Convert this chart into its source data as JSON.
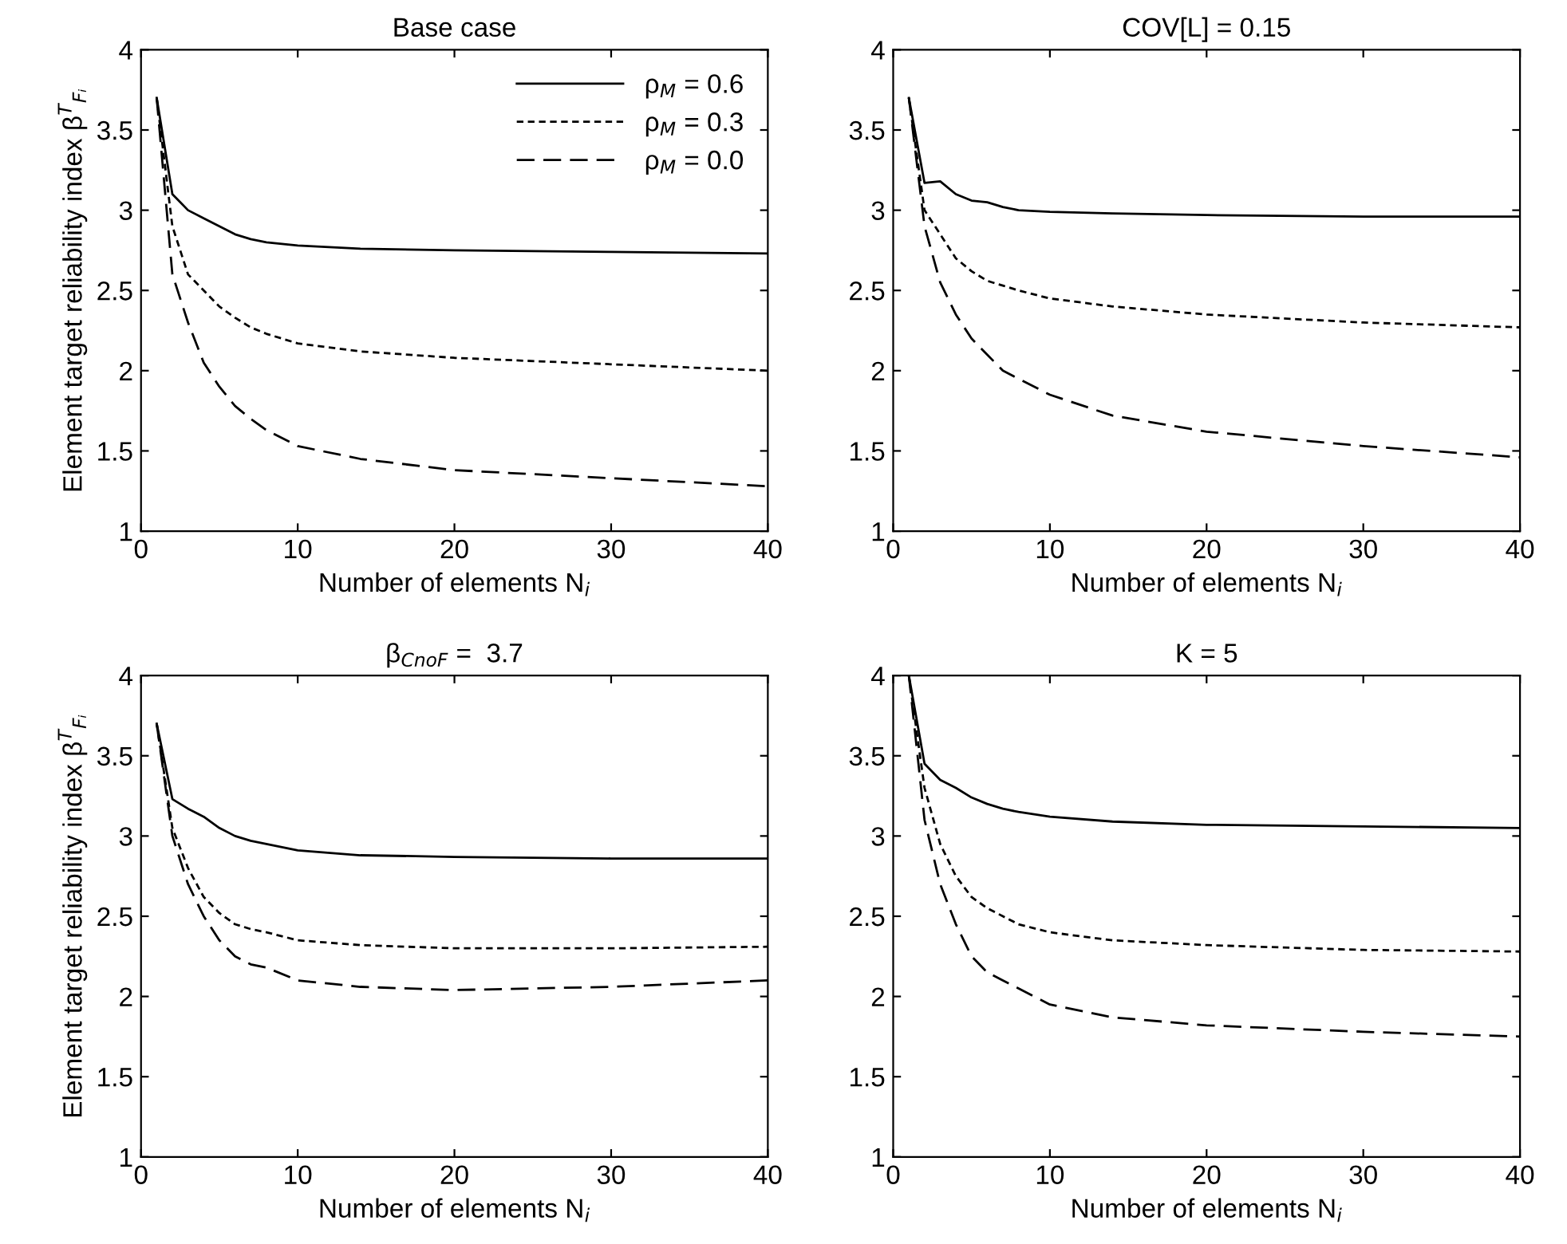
{
  "chart_data": [
    {
      "type": "line",
      "title": "Base case",
      "xlabel": "Number of elements N$_{i}$",
      "ylabel": "Element target reliability index β$^{T}$$_{Fᵢ}$",
      "x": [
        1,
        2,
        3,
        4,
        5,
        6,
        7,
        8,
        10,
        14,
        20,
        30,
        40
      ],
      "xlim": [
        0,
        40
      ],
      "xticks": [
        0,
        10,
        20,
        30,
        40
      ],
      "ylim": [
        1,
        4
      ],
      "yticks": [
        1,
        1.5,
        2,
        2.5,
        3,
        3.5,
        4
      ],
      "grid": false,
      "legend": "top right",
      "marker": "none",
      "series": [
        {
          "name": "ρ$_{M}$ = 0.6",
          "color": "#000000",
          "line_style": "solid",
          "values": [
            3.7,
            3.1,
            3.0,
            2.95,
            2.9,
            2.85,
            2.82,
            2.8,
            2.78,
            2.76,
            2.75,
            2.74,
            2.73
          ]
        },
        {
          "name": "ρ$_{M}$ = 0.3",
          "color": "#000000",
          "line_style": "dashed",
          "values": [
            3.7,
            2.9,
            2.6,
            2.5,
            2.4,
            2.33,
            2.27,
            2.23,
            2.17,
            2.12,
            2.08,
            2.04,
            2.0
          ]
        },
        {
          "name": "ρ$_{M}$ = 0.0",
          "color": "#000000",
          "line_style": "dashed",
          "values": [
            3.7,
            2.6,
            2.3,
            2.05,
            1.9,
            1.78,
            1.7,
            1.63,
            1.53,
            1.45,
            1.38,
            1.33,
            1.28
          ]
        }
      ]
    },
    {
      "type": "line",
      "title": "COV[L] = 0.15",
      "xlabel": "Number of elements N$_{i}$",
      "x": [
        1,
        2,
        3,
        4,
        5,
        6,
        7,
        8,
        10,
        14,
        20,
        30,
        40
      ],
      "xlim": [
        0,
        40
      ],
      "xticks": [
        0,
        10,
        20,
        30,
        40
      ],
      "ylim": [
        1,
        4
      ],
      "yticks": [
        1,
        1.5,
        2,
        2.5,
        3,
        3.5,
        4
      ],
      "grid": false,
      "legend": false,
      "marker": "none",
      "series": [
        {
          "color": "#000000",
          "line_style": "solid",
          "values": [
            3.7,
            3.17,
            3.18,
            3.1,
            3.06,
            3.05,
            3.02,
            3.0,
            2.99,
            2.98,
            2.97,
            2.96,
            2.96
          ]
        },
        {
          "color": "#000000",
          "line_style": "dashed",
          "values": [
            3.7,
            3.0,
            2.85,
            2.7,
            2.62,
            2.56,
            2.53,
            2.5,
            2.45,
            2.4,
            2.35,
            2.3,
            2.27
          ]
        },
        {
          "color": "#000000",
          "line_style": "dashed",
          "values": [
            3.7,
            2.9,
            2.55,
            2.35,
            2.2,
            2.1,
            2.0,
            1.95,
            1.85,
            1.72,
            1.62,
            1.53,
            1.46
          ]
        }
      ]
    },
    {
      "type": "line",
      "title": "β$_{CnoF}$ =  3.7",
      "xlabel": "Number of elements N$_{i}$",
      "ylabel": "Element target reliability index β$^{T}$$_{Fᵢ}$",
      "x": [
        1,
        2,
        3,
        4,
        5,
        6,
        7,
        8,
        10,
        14,
        20,
        30,
        40
      ],
      "xlim": [
        0,
        40
      ],
      "xticks": [
        0,
        10,
        20,
        30,
        40
      ],
      "ylim": [
        1,
        4
      ],
      "yticks": [
        1,
        1.5,
        2,
        2.5,
        3,
        3.5,
        4
      ],
      "grid": false,
      "legend": false,
      "marker": "none",
      "series": [
        {
          "color": "#000000",
          "line_style": "solid",
          "values": [
            3.7,
            3.23,
            3.17,
            3.12,
            3.05,
            3.0,
            2.97,
            2.95,
            2.91,
            2.88,
            2.87,
            2.86,
            2.86
          ]
        },
        {
          "color": "#000000",
          "line_style": "dashed",
          "values": [
            3.7,
            3.05,
            2.8,
            2.62,
            2.52,
            2.45,
            2.42,
            2.4,
            2.35,
            2.32,
            2.3,
            2.3,
            2.31
          ]
        },
        {
          "color": "#000000",
          "line_style": "dashed",
          "values": [
            3.7,
            3.0,
            2.7,
            2.5,
            2.35,
            2.25,
            2.2,
            2.18,
            2.1,
            2.06,
            2.04,
            2.06,
            2.1
          ]
        }
      ]
    },
    {
      "type": "line",
      "title": "K = 5",
      "xlabel": "Number of elements N$_{i}$",
      "x": [
        1,
        2,
        3,
        4,
        5,
        6,
        7,
        8,
        10,
        14,
        20,
        30,
        40
      ],
      "xlim": [
        0,
        40
      ],
      "xticks": [
        0,
        10,
        20,
        30,
        40
      ],
      "ylim": [
        1,
        4
      ],
      "yticks": [
        1,
        1.5,
        2,
        2.5,
        3,
        3.5,
        4
      ],
      "grid": false,
      "legend": false,
      "marker": "none",
      "series": [
        {
          "color": "#000000",
          "line_style": "solid",
          "values": [
            4.0,
            3.45,
            3.35,
            3.3,
            3.24,
            3.2,
            3.17,
            3.15,
            3.12,
            3.09,
            3.07,
            3.06,
            3.05
          ]
        },
        {
          "color": "#000000",
          "line_style": "dashed",
          "values": [
            4.0,
            3.3,
            2.95,
            2.75,
            2.62,
            2.55,
            2.5,
            2.45,
            2.4,
            2.35,
            2.32,
            2.29,
            2.28
          ]
        },
        {
          "color": "#000000",
          "line_style": "dashed",
          "values": [
            4.0,
            3.1,
            2.7,
            2.45,
            2.25,
            2.15,
            2.1,
            2.05,
            1.95,
            1.87,
            1.82,
            1.78,
            1.75
          ]
        }
      ]
    }
  ]
}
